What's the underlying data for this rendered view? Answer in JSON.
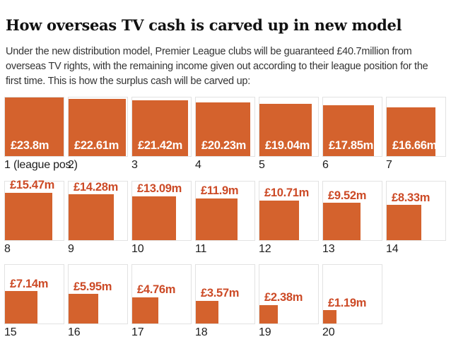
{
  "header": {
    "title": "How overseas TV cash is carved up in new model",
    "intro": "Under the new distribution model, Premier League clubs will be guaranteed £40.7million from overseas TV rights, with the remaining income given out according to their league position for the first time. This is how the surplus cash will be carved up:"
  },
  "colors": {
    "square": "#d4622d",
    "value_label_inside": "#ffffff",
    "value_label_outside": "#cc4a26",
    "cell_border": "#e2e2e2",
    "title": "#121212",
    "body": "#333333",
    "position_label": "#1c1c1c"
  },
  "chart_data": {
    "type": "bar",
    "variant": "square-area-grid",
    "title": "How overseas TV cash is carved up in new model",
    "unit": "£m (surplus overseas TV cash per league position)",
    "columns": 7,
    "max_value": 23.8,
    "guaranteed_amount_mentioned": "£40.7million",
    "categories": [
      "1 (league pos.)",
      "2",
      "3",
      "4",
      "5",
      "6",
      "7",
      "8",
      "9",
      "10",
      "11",
      "12",
      "13",
      "14",
      "15",
      "16",
      "17",
      "18",
      "19",
      "20"
    ],
    "values": [
      23.8,
      22.61,
      21.42,
      20.23,
      19.04,
      17.85,
      16.66,
      15.47,
      14.28,
      13.09,
      11.9,
      10.71,
      9.52,
      8.33,
      7.14,
      5.95,
      4.76,
      3.57,
      2.38,
      1.19
    ],
    "value_labels": [
      "£23.8m",
      "£22.61m",
      "£21.42m",
      "£20.23m",
      "£19.04m",
      "£17.85m",
      "£16.66m",
      "£15.47m",
      "£14.28m",
      "£13.09m",
      "£11.9m",
      "£10.71m",
      "£9.52m",
      "£8.33m",
      "£7.14m",
      "£5.95m",
      "£4.76m",
      "£3.57m",
      "£2.38m",
      "£1.19m"
    ],
    "label_inside": [
      true,
      true,
      true,
      true,
      true,
      true,
      true,
      false,
      false,
      false,
      false,
      false,
      false,
      false,
      false,
      false,
      false,
      false,
      false,
      false
    ],
    "legend_position": "none",
    "grid": "off"
  }
}
